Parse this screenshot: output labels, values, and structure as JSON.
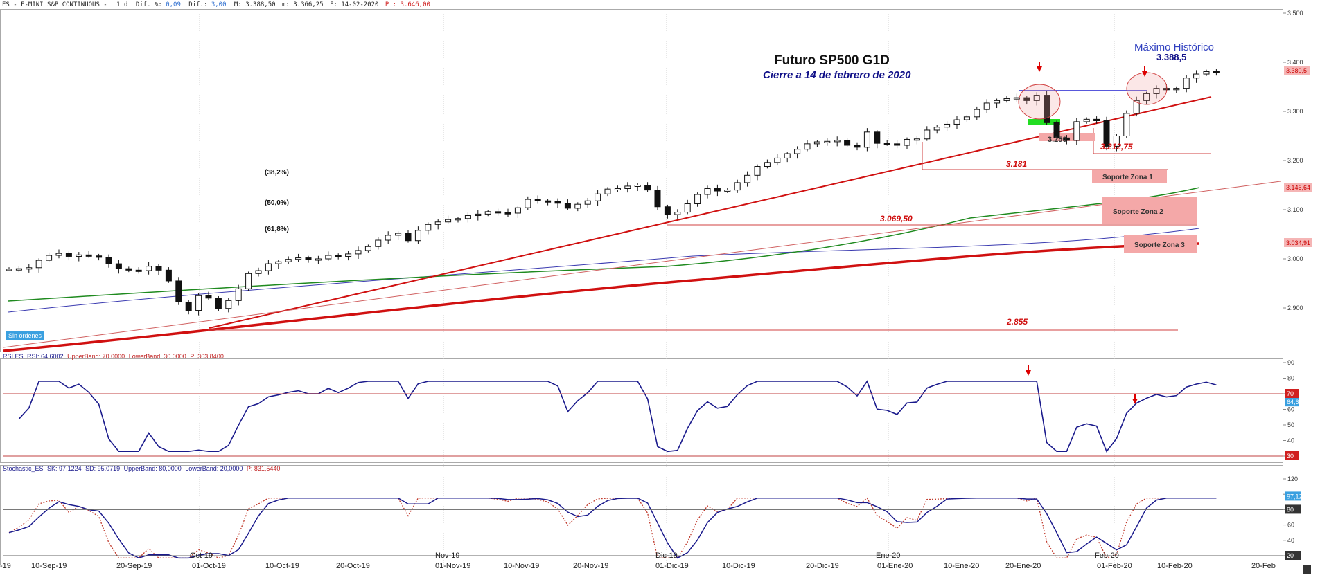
{
  "header": {
    "symbol": "ES - E-MINI S&P CONTINUOUS -",
    "period": "1 d",
    "dif_pct_label": "Dif. %:",
    "dif_pct_value": "0,09",
    "dif_label": "Dif.:",
    "dif_value": "3,00",
    "max_label": "M:",
    "max_value": "3.388,50",
    "min_label": "m:",
    "min_value": "3.366,25",
    "date_label": "F:",
    "date_value": "14-02-2020",
    "p_label": "P :",
    "p_value": "3.646,00"
  },
  "panels": {
    "rsi_legend": {
      "name": "RSI ES",
      "value": "RSI: 64.6002",
      "upper": "UpperBand: 70.0000",
      "lower": "LowerBand: 30.0000",
      "p": "P: 363.8400"
    },
    "stoch_legend": {
      "name": "Stochastic_ES",
      "sk": "SK: 97,1224",
      "sd": "SD: 95,0719",
      "upper": "UpperBand: 80,0000",
      "lower": "LowerBand: 20,0000",
      "p": "P: 831,5440"
    },
    "badge": "Sin órdenes"
  },
  "chart_data": [
    {
      "type": "candlestick",
      "title": "Futuro SP500 G1D",
      "subtitle": "Cierre a 14 de febrero de 2020",
      "ylim": [
        2820,
        3510
      ],
      "y_ticks": [
        "3.500",
        "3.400",
        "3.300",
        "3.200",
        "3.100",
        "3.000",
        "2.900"
      ],
      "x_ticks": [
        "10-Sep-19",
        "20-Sep-19",
        "Oct-19",
        "01-Oct-19",
        "10-Oct-19",
        "20-Oct-19",
        "Nov-19",
        "01-Nov-19",
        "10-Nov-19",
        "20-Nov-19",
        "Dic-19",
        "01-Dic-19",
        "10-Dic-19",
        "20-Dic-19",
        "Ene-20",
        "01-Ene-20",
        "10-Ene-20",
        "20-Ene-20",
        "Feb-20",
        "01-Feb-20",
        "10-Feb-20",
        "20-Feb"
      ],
      "x_edge_label": "-19",
      "closes": [
        2979,
        2980,
        2982,
        2997,
        3007,
        3011,
        3005,
        3008,
        3006,
        3003,
        2990,
        2980,
        2977,
        2976,
        2985,
        2977,
        2955,
        2912,
        2895,
        2925,
        2920,
        2899,
        2915,
        2939,
        2970,
        2976,
        2990,
        2994,
        2999,
        3002,
        3000,
        3000,
        3007,
        3005,
        3010,
        3017,
        3025,
        3038,
        3048,
        3052,
        3037,
        3058,
        3070,
        3075,
        3080,
        3082,
        3088,
        3091,
        3096,
        3094,
        3093,
        3104,
        3121,
        3118,
        3117,
        3113,
        3103,
        3111,
        3118,
        3132,
        3142,
        3143,
        3148,
        3150,
        3140,
        3106,
        3090,
        3095,
        3112,
        3131,
        3143,
        3138,
        3140,
        3155,
        3170,
        3188,
        3196,
        3205,
        3214,
        3223,
        3234,
        3238,
        3239,
        3241,
        3231,
        3227,
        3258,
        3235,
        3234,
        3231,
        3243,
        3244,
        3262,
        3268,
        3274,
        3283,
        3289,
        3304,
        3317,
        3322,
        3326,
        3328,
        3322,
        3333,
        3277,
        3246,
        3241,
        3279,
        3284,
        3281,
        3229,
        3250,
        3296,
        3322,
        3336,
        3347,
        3344,
        3347,
        3368,
        3376,
        3381,
        3379
      ],
      "annotations": [
        "Máximo Histórico",
        "3.388,5",
        "(38,2%)",
        "(50,0%)",
        "(61,8%)",
        "3.181",
        "3.069,50",
        "2.855",
        "3.212,75",
        "3.250",
        "Soporte Zona 1",
        "Soporte Zona 2",
        "Soporte Zona 3"
      ],
      "price_boxes": [
        {
          "label": "3.380,5",
          "value": 3380.5
        },
        {
          "label": "3.146,64",
          "value": 3146.64
        },
        {
          "label": "3.034,91",
          "value": 3034.91
        }
      ]
    },
    {
      "type": "line",
      "name": "RSI",
      "ylim": [
        22,
        92
      ],
      "y_ticks": [
        "90",
        "80",
        "70",
        "60",
        "50",
        "40",
        "30"
      ],
      "bands": [
        70,
        30
      ],
      "last_label": "64,6",
      "upper_label": "70",
      "lower_label": "30"
    },
    {
      "type": "line",
      "name": "Stochastic",
      "ylim": [
        17,
        126
      ],
      "y_ticks": [
        "120",
        "100",
        "80",
        "60",
        "40",
        "20"
      ],
      "bands": [
        80,
        20
      ],
      "last_label": "97,12",
      "upper_label": "80",
      "lower_label": "20"
    }
  ]
}
